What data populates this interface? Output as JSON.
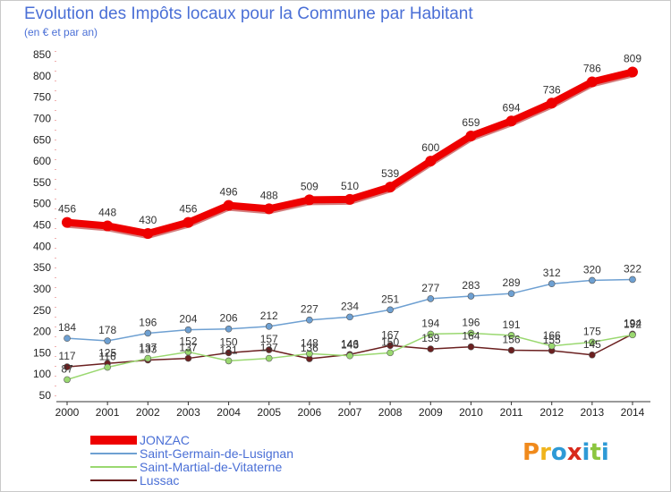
{
  "title": "Evolution des Impôts locaux pour la Commune par Habitant",
  "subtitle": "(en € et par an)",
  "logo": {
    "text": "Proxiti",
    "letter_colors": [
      "#f08a1c",
      "#f0b41c",
      "#2e9ad6",
      "#d82a1c",
      "#2e9ad6",
      "#8cc63f",
      "#2e9ad6"
    ]
  },
  "chart_data": {
    "type": "line",
    "x": [
      2000,
      2001,
      2002,
      2003,
      2004,
      2005,
      2006,
      2007,
      2008,
      2009,
      2010,
      2011,
      2012,
      2013,
      2014
    ],
    "ylim": [
      50,
      850
    ],
    "yticks": [
      50,
      100,
      150,
      200,
      250,
      300,
      350,
      400,
      450,
      500,
      550,
      600,
      650,
      700,
      750,
      800,
      850
    ],
    "grid": false,
    "legend_position": "bottom-left",
    "series": [
      {
        "name": "JONZAC",
        "color": "#ee0000",
        "width": 8,
        "marker": 6,
        "values": [
          456,
          448,
          430,
          456,
          496,
          488,
          509,
          510,
          539,
          600,
          659,
          694,
          736,
          786,
          809
        ]
      },
      {
        "name": "Saint-Germain-de-Lusignan",
        "color": "#6ea0d2",
        "width": 1.5,
        "marker": 3.5,
        "values": [
          184,
          178,
          196,
          204,
          206,
          212,
          227,
          234,
          251,
          277,
          283,
          289,
          312,
          320,
          322
        ]
      },
      {
        "name": "Saint-Martial-de-Vitaterne",
        "color": "#9ad870",
        "width": 1.5,
        "marker": 3.5,
        "values": [
          87,
          116,
          137,
          152,
          131,
          137,
          148,
          143,
          150,
          194,
          196,
          191,
          166,
          175,
          192
        ]
      },
      {
        "name": "Lussac",
        "color": "#6b2020",
        "width": 1.5,
        "marker": 3.5,
        "values": [
          117,
          125,
          133,
          137,
          150,
          157,
          136,
          146,
          167,
          159,
          164,
          156,
          155,
          145,
          194
        ]
      }
    ]
  }
}
